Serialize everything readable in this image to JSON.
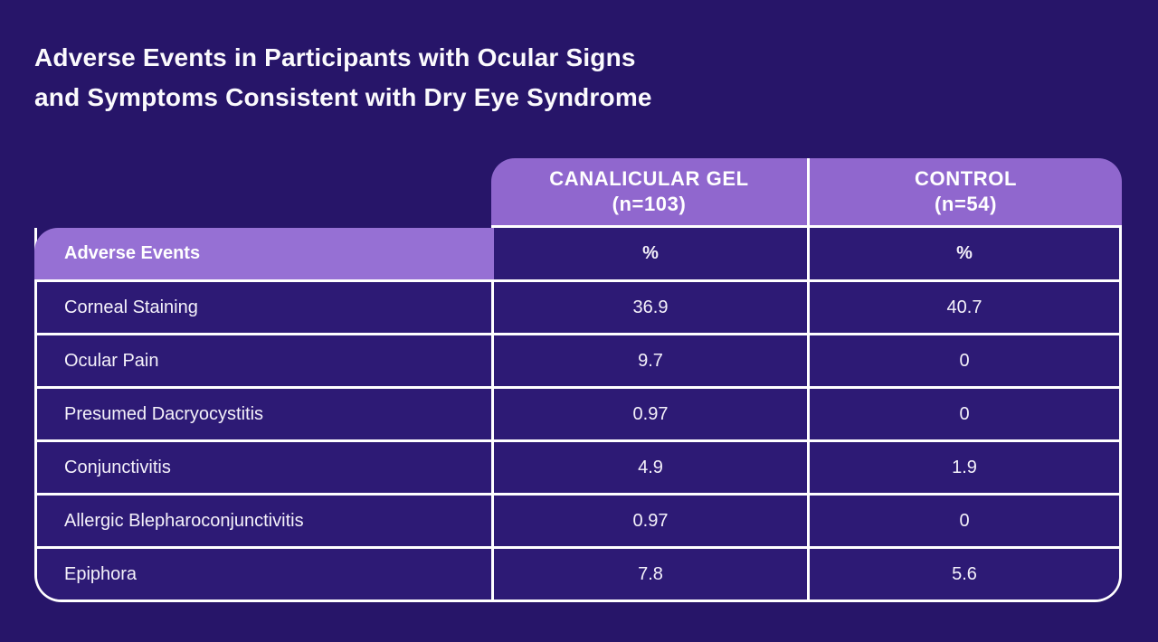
{
  "title": {
    "line1": "Adverse Events in Participants with Ocular Signs",
    "line2": "and Symptoms Consistent with Dry Eye Syndrome"
  },
  "table": {
    "column_groups": [
      {
        "name": "CANALICULAR GEL",
        "n": "(n=103)"
      },
      {
        "name": "CONTROL",
        "n": "(n=54)"
      }
    ],
    "row_header": "Adverse Events",
    "unit_labels": [
      "%",
      "%"
    ],
    "rows": [
      {
        "label": "Corneal Staining",
        "gel": "36.9",
        "control": "40.7"
      },
      {
        "label": "Ocular Pain",
        "gel": "9.7",
        "control": "0"
      },
      {
        "label": "Presumed Dacryocystitis",
        "gel": "0.97",
        "control": "0"
      },
      {
        "label": "Conjunctivitis",
        "gel": "4.9",
        "control": "1.9"
      },
      {
        "label": "Allergic Blepharoconjunctivitis",
        "gel": "0.97",
        "control": "0"
      },
      {
        "label": "Epiphora",
        "gel": "7.8",
        "control": "5.6"
      }
    ]
  },
  "colors": {
    "page_background": "#271569",
    "cell_background": "#2d1a75",
    "header_purple": "#9067ce",
    "row_header_purple": "#9670d4",
    "grid_line": "#ffffff",
    "text": "#f7f4fc"
  },
  "chart_data": {
    "type": "table",
    "title": "Adverse Events in Participants with Ocular Signs and Symptoms Consistent with Dry Eye Syndrome",
    "columns": [
      "Adverse Events",
      "CANALICULAR GEL (n=103) %",
      "CONTROL (n=54) %"
    ],
    "rows": [
      [
        "Corneal Staining",
        36.9,
        40.7
      ],
      [
        "Ocular Pain",
        9.7,
        0
      ],
      [
        "Presumed Dacryocystitis",
        0.97,
        0
      ],
      [
        "Conjunctivitis",
        4.9,
        1.9
      ],
      [
        "Allergic Blepharoconjunctivitis",
        0.97,
        0
      ],
      [
        "Epiphora",
        7.8,
        5.6
      ]
    ]
  }
}
